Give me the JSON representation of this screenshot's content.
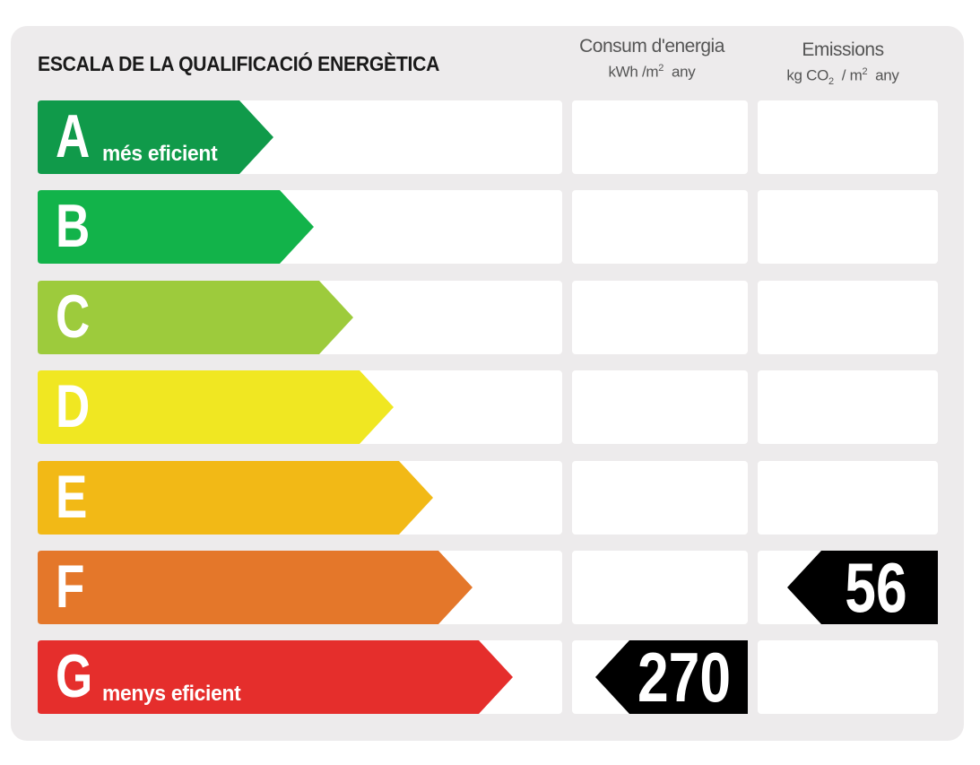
{
  "header": {
    "title": "ESCALA DE LA QUALIFICACIÓ ENERGÈTICA",
    "consum": {
      "line1": "Consum d'energia",
      "unit_a": "kWh /m",
      "unit_sup": "2",
      "unit_b": "any"
    },
    "emissions": {
      "line1": "Emissions",
      "unit_a": "kg CO",
      "unit_sub": "2",
      "unit_c": "/ m",
      "unit_sup": "2",
      "unit_b": "any"
    }
  },
  "colors": {
    "A": "#109a4a",
    "B": "#12b34a",
    "C": "#9dcb3c",
    "D": "#f0e722",
    "E": "#f2b916",
    "F": "#e4772a",
    "G": "#e52e2c",
    "marker": "#000000"
  },
  "ratings": [
    {
      "letter": "A",
      "label": "més eficient"
    },
    {
      "letter": "B",
      "label": ""
    },
    {
      "letter": "C",
      "label": ""
    },
    {
      "letter": "D",
      "label": ""
    },
    {
      "letter": "E",
      "label": ""
    },
    {
      "letter": "F",
      "label": ""
    },
    {
      "letter": "G",
      "label": "menys eficient"
    }
  ],
  "result": {
    "consum": {
      "rating": "G",
      "value": "270"
    },
    "emissions": {
      "rating": "F",
      "value": "56"
    }
  }
}
